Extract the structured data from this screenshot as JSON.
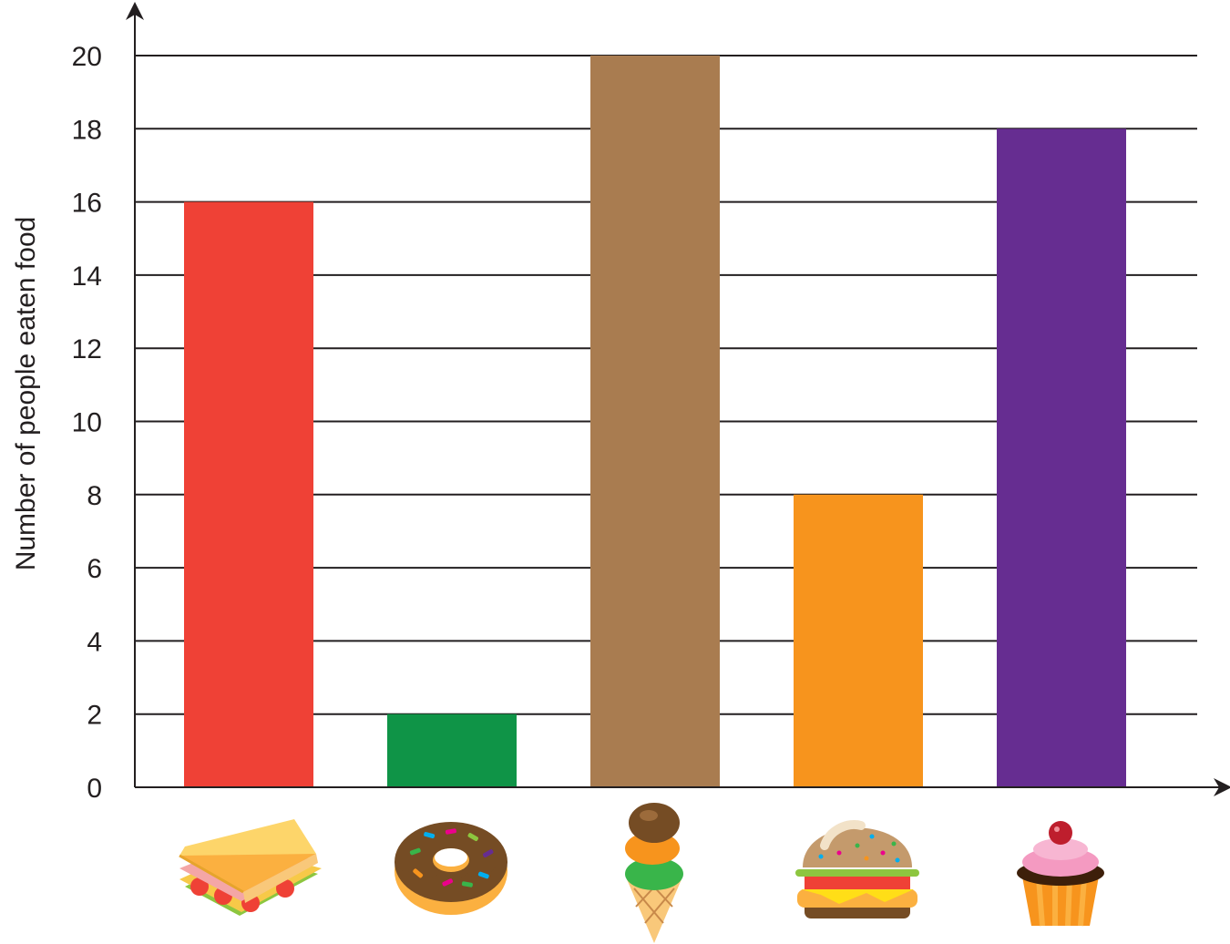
{
  "chart_data": {
    "type": "bar",
    "categories": [
      "sandwich",
      "donut",
      "ice-cream-cone",
      "burger",
      "cupcake"
    ],
    "values": [
      16,
      2,
      20,
      8,
      18
    ],
    "bar_colors": [
      "#ef4136",
      "#0f9447",
      "#a97c50",
      "#f7941d",
      "#662d91"
    ],
    "title": "",
    "xlabel": "",
    "ylabel": "Number of people eaten food",
    "ylim": [
      0,
      20
    ],
    "yticks": [
      0,
      2,
      4,
      6,
      8,
      10,
      12,
      14,
      16,
      18,
      20
    ],
    "grid": true,
    "legend": "none",
    "category_icons": [
      "sandwich-icon",
      "donut-icon",
      "ice-cream-icon",
      "burger-icon",
      "cupcake-icon"
    ]
  }
}
